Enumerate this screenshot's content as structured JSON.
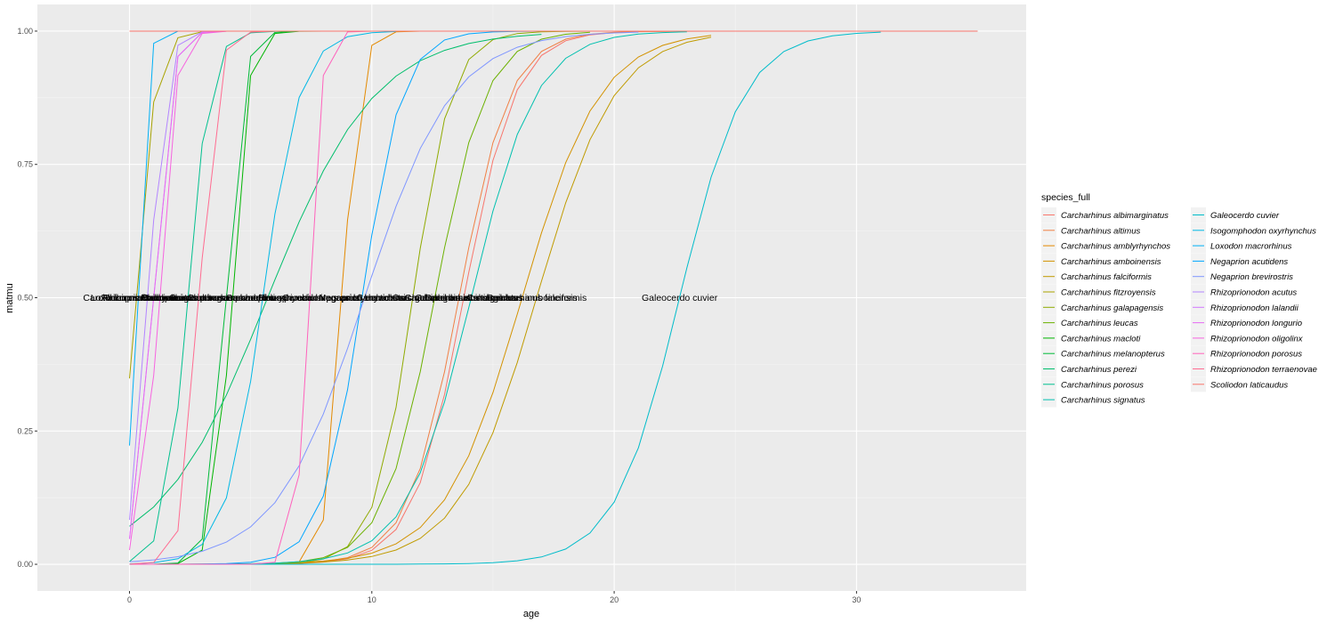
{
  "chart_data": {
    "type": "line",
    "xlabel": "age",
    "ylabel": "matmu",
    "xlim": [
      -3.8,
      37.0
    ],
    "ylim": [
      -0.05,
      1.05
    ],
    "x_ticks": [
      0,
      10,
      20,
      30
    ],
    "y_ticks": [
      0.0,
      0.25,
      0.5,
      0.75,
      1.0
    ],
    "x_tick_labels": [
      "0",
      "10",
      "20",
      "30"
    ],
    "y_tick_labels": [
      "0.00",
      "0.25",
      "0.50",
      "0.75",
      "1.00"
    ],
    "grid": true,
    "legend": {
      "title": "species_full",
      "placement": "right",
      "columns": 2
    },
    "series": [
      {
        "name": "Carcharhinus albimarginatus",
        "color": "#F8766D",
        "x0": 13.8,
        "k": 0.95,
        "x_max": 24,
        "label": "Carcharhinus albimarginatus"
      },
      {
        "name": "Carcharhinus altimus",
        "color": "#F07F44",
        "x0": 13.6,
        "k": 0.95,
        "x_max": 24,
        "label": "Carcharhinus altimus"
      },
      {
        "name": "Carcharhinus amblyrhynchos",
        "color": "#E38900",
        "x0": 8.8,
        "k": 3.0,
        "x_max": 13,
        "label": "Carcharhinus amblyrhynchos"
      },
      {
        "name": "Carcharhinus amboinensis",
        "color": "#D39200",
        "x0": 16.2,
        "k": 0.62,
        "x_max": 24,
        "label": "Carcharhinus amboinensis"
      },
      {
        "name": "Carcharhinus falciformis",
        "color": "#C09B00",
        "x0": 16.8,
        "k": 0.62,
        "x_max": 24,
        "label": "Carcharhinus falciformis"
      },
      {
        "name": "Carcharhinus fitzroyensis",
        "color": "#A9A300",
        "x0": 0.25,
        "k": 2.5,
        "x_max": 4,
        "label": "Carcharhinus fitzroyensis"
      },
      {
        "name": "Carcharhinus galapagensis",
        "color": "#8FAA00",
        "x0": 11.7,
        "k": 1.25,
        "x_max": 19,
        "label": "Carcharhinus galapagensis"
      },
      {
        "name": "Carcharhinus leucas",
        "color": "#6BB100",
        "x0": 12.6,
        "k": 0.95,
        "x_max": 19,
        "label": "Carcharhinus leucas"
      },
      {
        "name": "Carcharhinus macloti",
        "color": "#00B500",
        "x0": 4.2,
        "k": 3.0,
        "x_max": 8,
        "label": "Carcharhinus macloti"
      },
      {
        "name": "Carcharhinus melanopterus",
        "color": "#00BA38",
        "x0": 4.0,
        "k": 3.0,
        "x_max": 8,
        "label": "Carcharhinus melanopterus"
      },
      {
        "name": "Carcharhinus perezi",
        "color": "#00BE6C",
        "x0": 5.7,
        "k": 0.45,
        "x_max": 17,
        "label": "Carcharhinus perezi"
      },
      {
        "name": "Carcharhinus porosus",
        "color": "#00C08E",
        "x0": 2.4,
        "k": 2.2,
        "x_max": 6,
        "label": "Carcharhinus porosus"
      },
      {
        "name": "Carcharhinus signatus",
        "color": "#00C0AF",
        "x0": 14.1,
        "k": 0.75,
        "x_max": 23,
        "label": "Carcharhinus signatus"
      },
      {
        "name": "Galeocerdo cuvier",
        "color": "#00BCCA",
        "x0": 22.7,
        "k": 0.75,
        "x_max": 31,
        "label": "Galeocerdo cuvier"
      },
      {
        "name": "Isogomphodon oxyrhynchus",
        "color": "#00B8E5",
        "x0": 5.5,
        "k": 1.3,
        "x_max": 11,
        "label": "Isogomphodon oxyrhynchus"
      },
      {
        "name": "Loxodon macrorhinus",
        "color": "#00B0F6",
        "x0": 0.25,
        "k": 5.0,
        "x_max": 3,
        "label": "Loxodon macrorhinus"
      },
      {
        "name": "Negaprion acutidens",
        "color": "#00A6FF",
        "x0": 9.6,
        "k": 1.2,
        "x_max": 18,
        "label": "Negaprion acutidens"
      },
      {
        "name": "Negaprion brevirostris",
        "color": "#7F96FF",
        "x0": 9.7,
        "k": 0.55,
        "x_max": 21,
        "label": "Negaprion brevirostris"
      },
      {
        "name": "Rhizoprionodon acutus",
        "color": "#B385FF",
        "x0": 0.8,
        "k": 3.0,
        "x_max": 4,
        "label": "Rhizoprionodon acutus"
      },
      {
        "name": "Rhizoprionodon lalandii",
        "color": "#D277FF",
        "x0": 1.0,
        "k": 3.0,
        "x_max": 4,
        "label": ""
      },
      {
        "name": "Rhizoprionodon longurio",
        "color": "#E76BF3",
        "x0": 1.0,
        "k": 3.0,
        "x_max": 4,
        "label": "Rhizoprionodon longurio"
      },
      {
        "name": "Rhizoprionodon oligolinx",
        "color": "#F763E0",
        "x0": 1.2,
        "k": 3.0,
        "x_max": 4,
        "label": ""
      },
      {
        "name": "Rhizoprionodon porosus",
        "color": "#FF62BC",
        "x0": 7.4,
        "k": 4.0,
        "x_max": 10,
        "label": "Rhizoprionodon porosus"
      },
      {
        "name": "Rhizoprionodon terraenovae",
        "color": "#FF6C91",
        "x0": 2.9,
        "k": 3.0,
        "x_max": 6,
        "label": "Rhizoprionodon terraenovae"
      },
      {
        "name": "Scoliodon laticaudus",
        "color": "#F8766D",
        "x0": -20,
        "k": 1.0,
        "x_max": 35,
        "label": ""
      }
    ]
  }
}
